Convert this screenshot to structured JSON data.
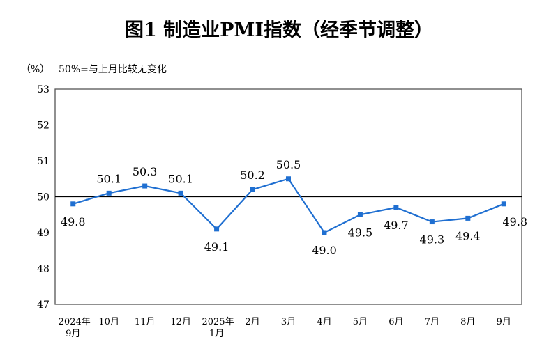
{
  "chart_data": {
    "type": "line",
    "title": "图1  制造业PMI指数（经季节调整）",
    "ylabel": "（%）",
    "annotation": "50%=与上月比较无变化",
    "categories": [
      [
        "2024年",
        "9月"
      ],
      [
        "10月"
      ],
      [
        "11月"
      ],
      [
        "12月"
      ],
      [
        "2025年",
        "1月"
      ],
      [
        "2月"
      ],
      [
        "3月"
      ],
      [
        "4月"
      ],
      [
        "5月"
      ],
      [
        "6月"
      ],
      [
        "7月"
      ],
      [
        "8月"
      ],
      [
        "9月"
      ]
    ],
    "values": [
      49.8,
      50.1,
      50.3,
      50.1,
      49.1,
      50.2,
      50.5,
      49.0,
      49.5,
      49.7,
      49.3,
      49.4,
      49.8
    ],
    "data_labels": [
      "49.8",
      "50.1",
      "50.3",
      "50.1",
      "49.1",
      "50.2",
      "50.5",
      "49.0",
      "49.5",
      "49.7",
      "49.3",
      "49.4",
      "49.8"
    ],
    "yticks": [
      "47",
      "48",
      "49",
      "50",
      "51",
      "52",
      "53"
    ],
    "ylim": [
      47,
      53
    ],
    "reference_line": 50,
    "grid": false,
    "line_color": "#1f6fd1"
  }
}
